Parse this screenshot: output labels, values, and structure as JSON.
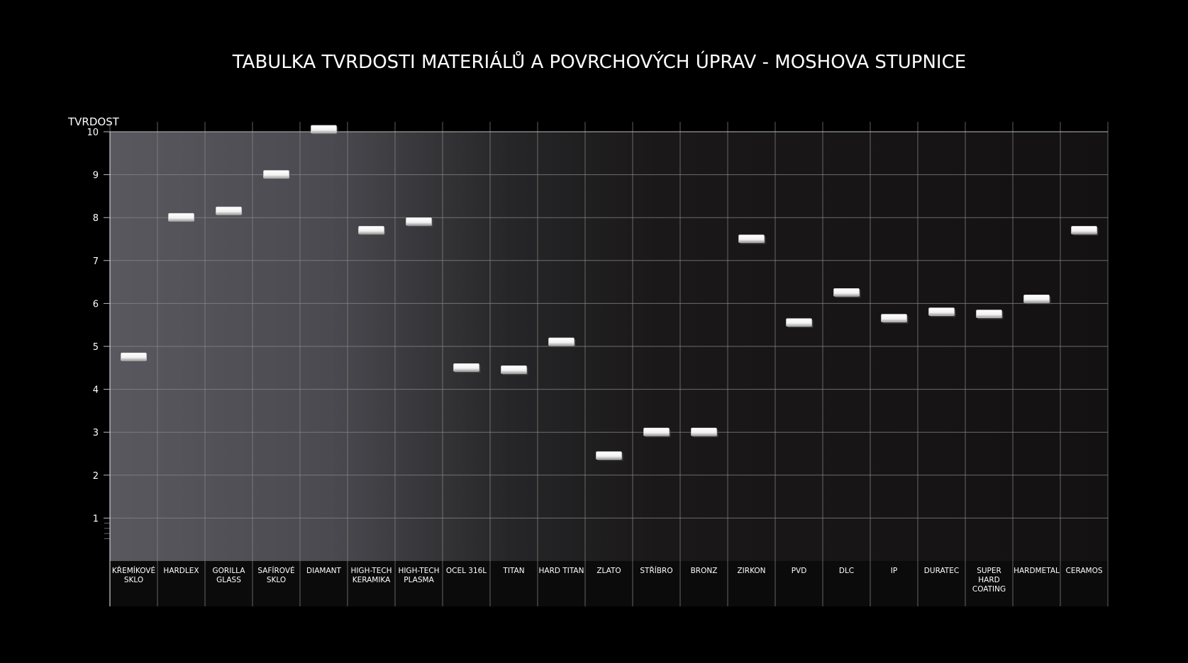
{
  "chart_data": {
    "type": "scatter",
    "title": "TABULKA TVRDOSTI MATERIÁLŮ A POVRCHOVÝCH ÚPRAV - MOSHOVA STUPNICE",
    "ylabel": "TVRDOST",
    "xlabel": "",
    "ylim": [
      0,
      10
    ],
    "yticks": [
      1,
      2,
      3,
      4,
      5,
      6,
      7,
      8,
      9,
      10
    ],
    "grid": true,
    "categories": [
      "KŘEMÍKOVÉ SKLO",
      "HARDLEX",
      "GORILLA GLASS",
      "SAFÍROVÉ SKLO",
      "DIAMANT",
      "HIGH-TECH KERAMIKA",
      "HIGH-TECH PLASMA",
      "OCEL 316L",
      "TITAN",
      "HARD TITAN",
      "ZLATO",
      "STŘÍBRO",
      "BRONZ",
      "ZIRKON",
      "PVD",
      "DLC",
      "IP",
      "DURATEC",
      "SUPER HARD COATING",
      "HARDMETAL",
      "CERAMOS"
    ],
    "values": [
      4.75,
      8.0,
      8.15,
      9.0,
      10.05,
      7.7,
      7.9,
      4.5,
      4.45,
      5.1,
      2.45,
      3.0,
      3.0,
      7.5,
      5.55,
      6.25,
      5.65,
      5.8,
      5.75,
      6.1,
      7.7
    ],
    "colors": {
      "background": "#000000",
      "plot_left": "#54545a",
      "plot_right": "#141212",
      "grid": "#8a8a8a",
      "marker": "#ffffff"
    }
  }
}
